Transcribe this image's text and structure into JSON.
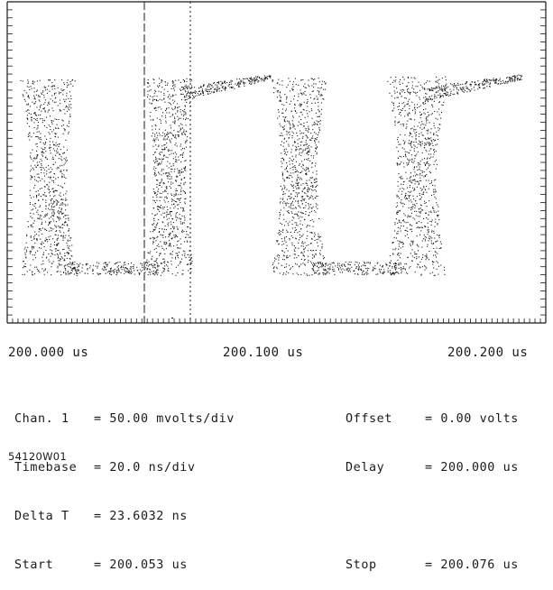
{
  "screen": {
    "time_axis": {
      "left_label": "200.000 us",
      "center_label": "200.100 us",
      "right_label": "200.200 us"
    }
  },
  "trace": {
    "description_waveform": "square-wave eye pattern",
    "markers": {
      "start_marker": "200.053 us",
      "stop_marker": "200.076 us"
    }
  },
  "readout": {
    "rows": [
      {
        "left_key": "Chan. 1",
        "left_value": "= 50.00 mvolts/div",
        "right_key": "Offset",
        "right_value": "= 0.00 volts"
      },
      {
        "left_key": "Timebase",
        "left_value": "= 20.0 ns/div",
        "right_key": "Delay",
        "right_value": "= 200.000 us"
      },
      {
        "left_key": "Delta T",
        "left_value": "= 23.6032 ns",
        "right_key": "",
        "right_value": ""
      },
      {
        "left_key": "Start",
        "left_value": "= 200.053 us",
        "right_key": "Stop",
        "right_value": "= 200.076 us"
      }
    ]
  },
  "figure_id": "54120W01",
  "colors": {
    "ink": "#1a1a1a",
    "background": "#ffffff"
  }
}
